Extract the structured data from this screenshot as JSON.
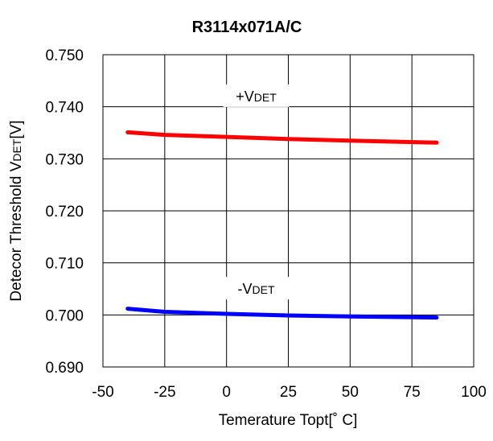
{
  "chart_data": {
    "type": "line",
    "title": "R3114x071A/C",
    "xlabel": "Temerature Topt[˚ C]",
    "ylabel": {
      "main": "Detecor Threshold V",
      "sub": "DET",
      "tail": "[V]"
    },
    "xlim": [
      -50,
      100
    ],
    "ylim": [
      0.69,
      0.75
    ],
    "x_ticks": [
      -50,
      -25,
      0,
      25,
      50,
      75,
      100
    ],
    "x_tick_labels": [
      "-50",
      "-25",
      "0",
      "25",
      "50",
      "75",
      "100"
    ],
    "y_ticks": [
      0.69,
      0.7,
      0.71,
      0.72,
      0.73,
      0.74,
      0.75
    ],
    "y_tick_labels": [
      "0.690",
      "0.700",
      "0.710",
      "0.720",
      "0.730",
      "0.740",
      "0.750"
    ],
    "grid": true,
    "series": [
      {
        "key": "plus",
        "color": "#ff0000",
        "x": [
          -40,
          -25,
          0,
          25,
          50,
          85
        ],
        "values": [
          0.7351,
          0.7346,
          0.7342,
          0.7338,
          0.7335,
          0.7331
        ]
      },
      {
        "key": "minus",
        "color": "#0000ff",
        "x": [
          -40,
          -25,
          0,
          25,
          50,
          85
        ],
        "values": [
          0.7012,
          0.7006,
          0.7002,
          0.6999,
          0.6997,
          0.6995
        ]
      }
    ],
    "annotations": [
      {
        "target": "plus",
        "prefix": "+V",
        "sub": "DET",
        "x": 12,
        "y": 0.7412
      },
      {
        "target": "minus",
        "prefix": "-V",
        "sub": "DET",
        "x": 12,
        "y": 0.7042
      }
    ]
  }
}
